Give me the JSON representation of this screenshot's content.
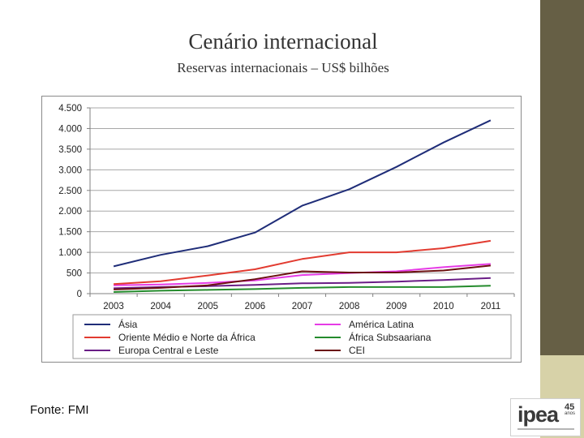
{
  "title": "Cenário internacional",
  "subtitle": "Reservas internacionais – US$ bilhões",
  "source": "Fonte: FMI",
  "logo": {
    "word": "ipea",
    "years": "45",
    "years_label": "anos"
  },
  "colors": {
    "sidebar": "#665f45",
    "sidebar_accent": "#d7d2a8"
  },
  "chart_data": {
    "type": "line",
    "categories": [
      "2003",
      "2004",
      "2005",
      "2006",
      "2007",
      "2008",
      "2009",
      "2010",
      "2011"
    ],
    "ylim": [
      0,
      4500
    ],
    "yticks": [
      0,
      500,
      1000,
      1500,
      2000,
      2500,
      3000,
      3500,
      4000,
      4500
    ],
    "ytick_labels": [
      "0",
      "500",
      "1.000",
      "1.500",
      "2.000",
      "2.500",
      "3.000",
      "3.500",
      "4.000",
      "4.500"
    ],
    "grid": true,
    "legend_position": "bottom",
    "series": [
      {
        "name": "Ásia",
        "color": "#1f2d78",
        "values": [
          660,
          940,
          1150,
          1480,
          2130,
          2530,
          3070,
          3660,
          4200
        ]
      },
      {
        "name": "América Latina",
        "color": "#e63be6",
        "values": [
          200,
          220,
          260,
          320,
          450,
          500,
          540,
          640,
          720
        ]
      },
      {
        "name": "Oriente Médio e Norte da África",
        "color": "#e23b30",
        "values": [
          230,
          300,
          440,
          590,
          840,
          1000,
          1000,
          1100,
          1280
        ]
      },
      {
        "name": "África Subsaariana",
        "color": "#248b2c",
        "values": [
          40,
          70,
          90,
          110,
          140,
          160,
          160,
          160,
          190
        ]
      },
      {
        "name": "Europa Central e Leste",
        "color": "#6a1d86",
        "values": [
          130,
          160,
          180,
          210,
          250,
          260,
          290,
          330,
          380
        ]
      },
      {
        "name": "CEI",
        "color": "#6b1010",
        "values": [
          100,
          140,
          200,
          350,
          540,
          510,
          510,
          560,
          680
        ]
      }
    ]
  }
}
